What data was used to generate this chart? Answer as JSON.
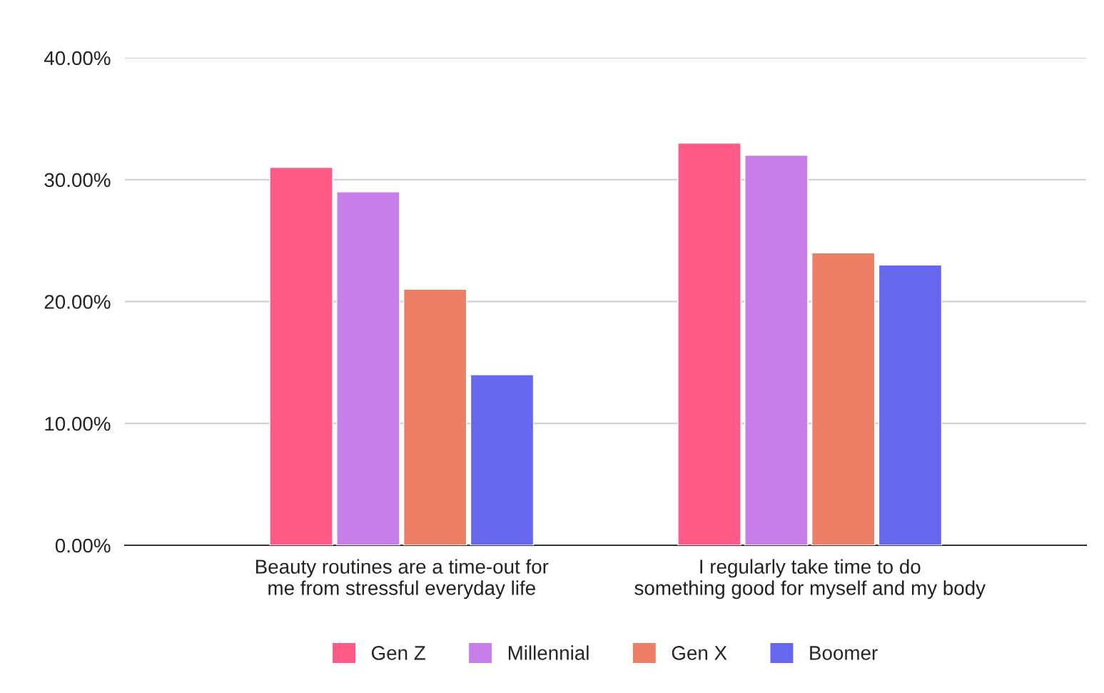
{
  "chart_data": {
    "type": "bar",
    "categories": [
      "Beauty routines are a time-out for me from stressful everyday life",
      "I regularly take time to do something good for myself and my body"
    ],
    "series": [
      {
        "name": "Gen Z",
        "color": "#ff5a87",
        "values": [
          31,
          33
        ]
      },
      {
        "name": "Millennial",
        "color": "#c87ee8",
        "values": [
          29,
          32
        ]
      },
      {
        "name": "Gen X",
        "color": "#ee7f67",
        "values": [
          21,
          24
        ]
      },
      {
        "name": "Boomer",
        "color": "#6767ee",
        "values": [
          14,
          23
        ]
      }
    ],
    "ylim": [
      0,
      40
    ],
    "yticks": [
      {
        "value": 0,
        "label": "0.00%"
      },
      {
        "value": 10,
        "label": "10.00%"
      },
      {
        "value": 20,
        "label": "20.00%"
      },
      {
        "value": 30,
        "label": "30.00%"
      },
      {
        "value": 40,
        "label": "40.00%"
      }
    ],
    "grid": "y",
    "legend": "bottom"
  }
}
